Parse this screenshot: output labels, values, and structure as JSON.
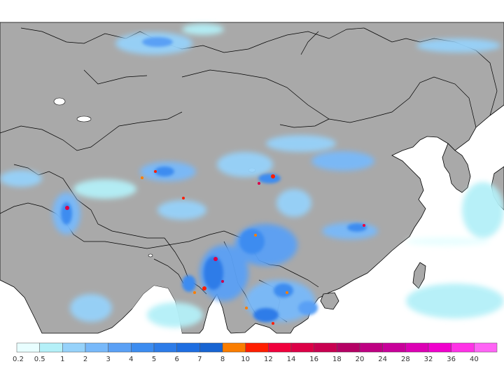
{
  "colors": {
    "land": "#a9a9a9",
    "water": "#ffffff",
    "border": "#000000"
  },
  "legend": {
    "bins": [
      {
        "label": "0.2",
        "color": "#e8feff"
      },
      {
        "label": "0.5",
        "color": "#b4f0f8"
      },
      {
        "label": "1",
        "color": "#96d2fa"
      },
      {
        "label": "2",
        "color": "#78b9fa"
      },
      {
        "label": "3",
        "color": "#5aa0f5"
      },
      {
        "label": "4",
        "color": "#3c8cf0"
      },
      {
        "label": "5",
        "color": "#2d7ce8"
      },
      {
        "label": "6",
        "color": "#1e6ee1"
      },
      {
        "label": "7",
        "color": "#1764d2"
      },
      {
        "label": "8",
        "color": "#fa7d00"
      },
      {
        "label": "10",
        "color": "#ff1e00"
      },
      {
        "label": "12",
        "color": "#f0003c"
      },
      {
        "label": "14",
        "color": "#dc0046"
      },
      {
        "label": "16",
        "color": "#c80050"
      },
      {
        "label": "18",
        "color": "#b40064"
      },
      {
        "label": "20",
        "color": "#be0082"
      },
      {
        "label": "24",
        "color": "#c8009a"
      },
      {
        "label": "28",
        "color": "#dc00b4"
      },
      {
        "label": "32",
        "color": "#f000cd"
      },
      {
        "label": "36",
        "color": "#ff32e6"
      },
      {
        "label": "40",
        "color": "#ff64f5"
      }
    ]
  }
}
